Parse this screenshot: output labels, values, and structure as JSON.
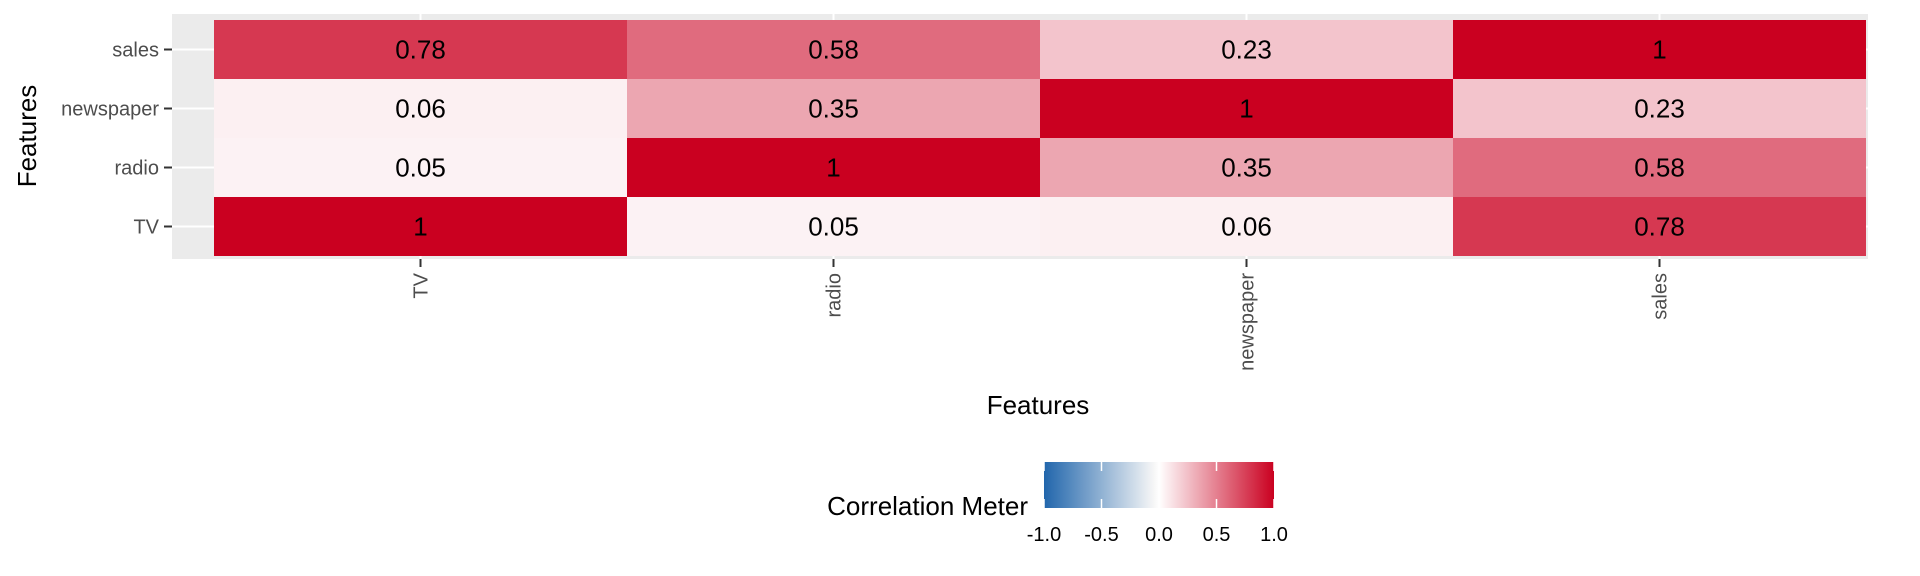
{
  "chart_data": {
    "type": "heatmap",
    "x_categories": [
      "TV",
      "radio",
      "newspaper",
      "sales"
    ],
    "y_categories": [
      "TV",
      "radio",
      "newspaper",
      "sales"
    ],
    "matrix": [
      [
        1,
        0.05,
        0.06,
        0.78
      ],
      [
        0.05,
        1,
        0.35,
        0.58
      ],
      [
        0.06,
        0.35,
        1,
        0.23
      ],
      [
        0.78,
        0.58,
        0.23,
        1
      ]
    ],
    "cell_labels": [
      [
        "1",
        "0.05",
        "0.06",
        "0.78"
      ],
      [
        "0.05",
        "1",
        "0.35",
        "0.58"
      ],
      [
        "0.06",
        "0.35",
        "1",
        "0.23"
      ],
      [
        "0.78",
        "0.58",
        "0.23",
        "1"
      ]
    ],
    "xlabel": "Features",
    "ylabel": "Features",
    "legend": {
      "title": "Correlation Meter",
      "position": "bottom",
      "range": [
        -1,
        1
      ],
      "ticks": [
        -1,
        -0.5,
        0,
        0.5,
        1
      ],
      "tick_labels": [
        "-1.0",
        "-0.5",
        "0.0",
        "0.5",
        "1.0"
      ],
      "colors": [
        "#2166ac",
        "#f7f7f7",
        "#ffffff",
        "#ca0020"
      ]
    },
    "grid": true
  }
}
